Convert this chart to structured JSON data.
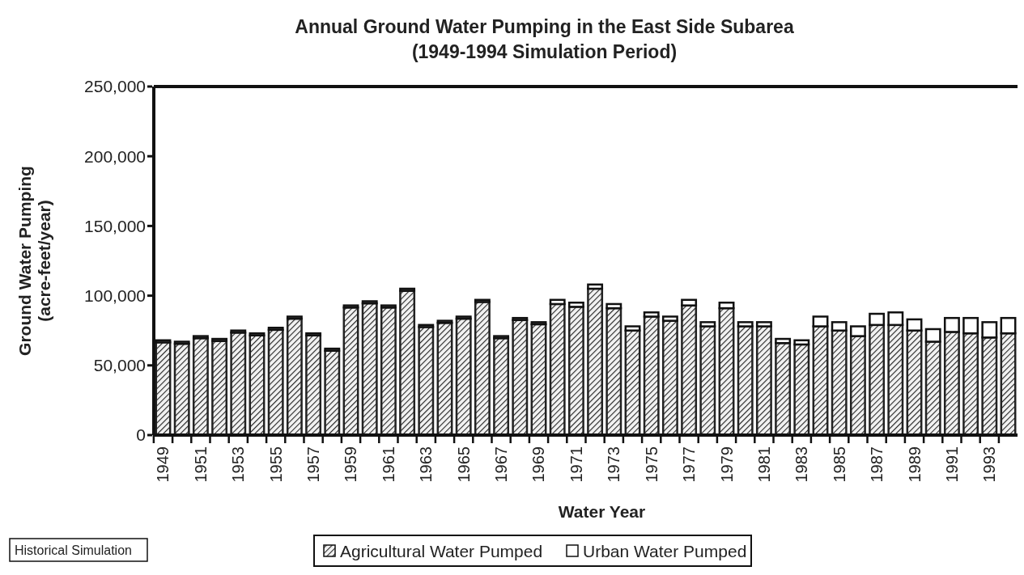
{
  "chart_data": {
    "type": "bar",
    "title": "Annual Ground Water Pumping in the East Side Subarea",
    "subtitle": "(1949-1994 Simulation Period)",
    "xlabel": "Water Year",
    "ylabel": "Ground Water Pumping\n(acre-feet/year)",
    "categories": [
      "1949",
      null,
      "1951",
      null,
      "1953",
      null,
      "1955",
      null,
      "1957",
      null,
      "1959",
      null,
      "1961",
      null,
      "1963",
      null,
      "1965",
      null,
      "1967",
      null,
      "1969",
      null,
      "1971",
      null,
      "1973",
      null,
      "1975",
      null,
      "1977",
      null,
      "1979",
      null,
      "1981",
      null,
      "1983",
      null,
      "1985",
      null,
      "1987",
      null,
      "1989",
      null,
      "1991",
      null,
      "1993",
      null
    ],
    "stacked": true,
    "series": [
      {
        "name": "Agricultural Water Pumped",
        "color": "#222222",
        "values": [
          66500,
          65500,
          69500,
          67500,
          73500,
          71500,
          75500,
          83500,
          71500,
          60500,
          91500,
          94500,
          91500,
          103500,
          77500,
          80500,
          83500,
          95500,
          69500,
          82500,
          79500,
          94000,
          92000,
          105000,
          91000,
          75000,
          85000,
          82000,
          93000,
          78000,
          91000,
          78000,
          78000,
          66000,
          65000,
          78000,
          75000,
          71000,
          79000,
          79000,
          75000,
          67000,
          74000,
          73000,
          70000,
          73000
        ]
      },
      {
        "name": "Urban Water Pumped",
        "color": "#ffffff",
        "values": [
          1500,
          1500,
          1500,
          1500,
          1500,
          1500,
          1500,
          1500,
          1500,
          1500,
          1500,
          1500,
          1500,
          1500,
          1500,
          1500,
          1500,
          1500,
          1500,
          1500,
          1500,
          3000,
          3000,
          3000,
          3000,
          3000,
          3000,
          3000,
          4000,
          3000,
          4000,
          3000,
          3000,
          3000,
          3000,
          7000,
          6000,
          7000,
          8000,
          9000,
          8000,
          9000,
          10000,
          11000,
          11000,
          11000
        ]
      }
    ],
    "ylim": [
      0,
      250000
    ],
    "yticks": [
      0,
      {
        "value": 50000,
        "label": "50,000"
      },
      {
        "value": 100000,
        "label": "100,000"
      },
      {
        "value": 150000,
        "label": "150,000"
      },
      {
        "value": 200000,
        "label": "200,000"
      },
      {
        "value": 250000,
        "label": "250,000"
      }
    ],
    "legend": "bottom",
    "grid": false,
    "annotations": [
      "Historical Simulation"
    ]
  }
}
